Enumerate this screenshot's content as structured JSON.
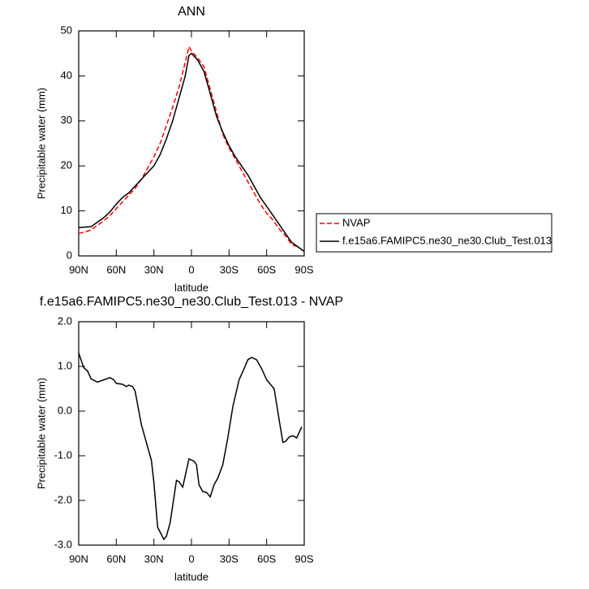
{
  "chart_data": [
    {
      "type": "line",
      "title": "ANN",
      "x_label": "latitude",
      "y_label": "Precipitable water (mm)",
      "x": [
        90,
        85,
        80,
        75,
        70,
        65,
        60,
        55,
        50,
        45,
        40,
        35,
        30,
        25,
        20,
        15,
        10,
        5,
        2,
        0,
        -5,
        -10,
        -15,
        -20,
        -25,
        -30,
        -35,
        -40,
        -45,
        -50,
        -55,
        -60,
        -65,
        -70,
        -75,
        -80,
        -85,
        -90
      ],
      "series": [
        {
          "name": "NVAP",
          "color": "#ff0000",
          "line_style": "dashed",
          "values": [
            5,
            5.3,
            5.8,
            6.8,
            7.8,
            9,
            10.5,
            12,
            13.5,
            15,
            17,
            19.5,
            22,
            25,
            29,
            33,
            37.5,
            43,
            46.5,
            45.5,
            44,
            42,
            37,
            32,
            27,
            24,
            21.5,
            19,
            16.5,
            14,
            11.5,
            9.5,
            8,
            6,
            4.5,
            2.5,
            2,
            1
          ]
        },
        {
          "name": "f.e15a6.FAMIPC5.ne30_ne30.Club_Test.013",
          "color": "#000000",
          "line_style": "solid",
          "values": [
            6.3,
            6.4,
            6.5,
            7.5,
            8.5,
            9.8,
            11.5,
            13,
            14,
            15.5,
            17,
            18.5,
            20,
            22.5,
            26,
            30,
            35,
            40,
            44.5,
            45,
            43.5,
            41,
            36,
            31,
            27.5,
            24.5,
            22,
            20,
            18,
            15.5,
            13,
            11,
            9,
            7,
            5,
            3,
            2,
            1
          ]
        }
      ],
      "xlim": [
        90,
        -90
      ],
      "xticks": [
        {
          "value": 90,
          "label": "90N"
        },
        {
          "value": 60,
          "label": "60N"
        },
        {
          "value": 30,
          "label": "30N"
        },
        0,
        {
          "value": -30,
          "label": "30S"
        },
        {
          "value": -60,
          "label": "60S"
        },
        {
          "value": -90,
          "label": "90S"
        }
      ],
      "ylim": [
        0,
        50
      ],
      "yticks": [
        0,
        10,
        20,
        30,
        40,
        50
      ],
      "legend": "right"
    },
    {
      "type": "line",
      "title": "f.e15a6.FAMIPC5.ne30_ne30.Club_Test.013 - NVAP",
      "x_label": "latitude",
      "y_label": "Precipitable water (mm)",
      "x": [
        90,
        86,
        83,
        80,
        75,
        70,
        65,
        62,
        60,
        55,
        52,
        50,
        47,
        45,
        40,
        35,
        32,
        30,
        27,
        22,
        20,
        17,
        12,
        10,
        7,
        2,
        -2,
        -4,
        -6,
        -9,
        -12,
        -15,
        -18,
        -21,
        -25,
        -29,
        -33,
        -38,
        -42,
        -45,
        -48,
        -52,
        -56,
        -60,
        -63,
        -66,
        -70,
        -73,
        -75,
        -78,
        -81,
        -84,
        -88
      ],
      "values": [
        1.3,
        0.97,
        0.9,
        0.72,
        0.65,
        0.7,
        0.75,
        0.7,
        0.62,
        0.6,
        0.55,
        0.58,
        0.55,
        0.45,
        -0.3,
        -0.8,
        -1.1,
        -1.6,
        -2.6,
        -2.87,
        -2.8,
        -2.5,
        -1.55,
        -1.58,
        -1.7,
        -1.07,
        -1.12,
        -1.2,
        -1.65,
        -1.8,
        -1.82,
        -1.92,
        -1.65,
        -1.5,
        -1.2,
        -0.6,
        0.1,
        0.7,
        0.95,
        1.15,
        1.2,
        1.15,
        0.95,
        0.7,
        0.6,
        0.5,
        -0.2,
        -0.7,
        -0.68,
        -0.58,
        -0.55,
        -0.6,
        -0.35
      ],
      "color": "#000000",
      "line_style": "solid",
      "xlim": [
        90,
        -90
      ],
      "xticks": [
        {
          "value": 90,
          "label": "90N"
        },
        {
          "value": 60,
          "label": "60N"
        },
        {
          "value": 30,
          "label": "30N"
        },
        0,
        {
          "value": -30,
          "label": "30S"
        },
        {
          "value": -60,
          "label": "60S"
        },
        {
          "value": -90,
          "label": "90S"
        }
      ],
      "ylim": [
        -3,
        2
      ],
      "yticks": [
        {
          "value": -3,
          "label": "-3.0"
        },
        {
          "value": -2,
          "label": "-2.0"
        },
        {
          "value": -1,
          "label": "-1.0"
        },
        {
          "value": 0,
          "label": "0.0"
        },
        {
          "value": 1,
          "label": "1.0"
        },
        {
          "value": 2,
          "label": "2.0"
        }
      ]
    }
  ]
}
